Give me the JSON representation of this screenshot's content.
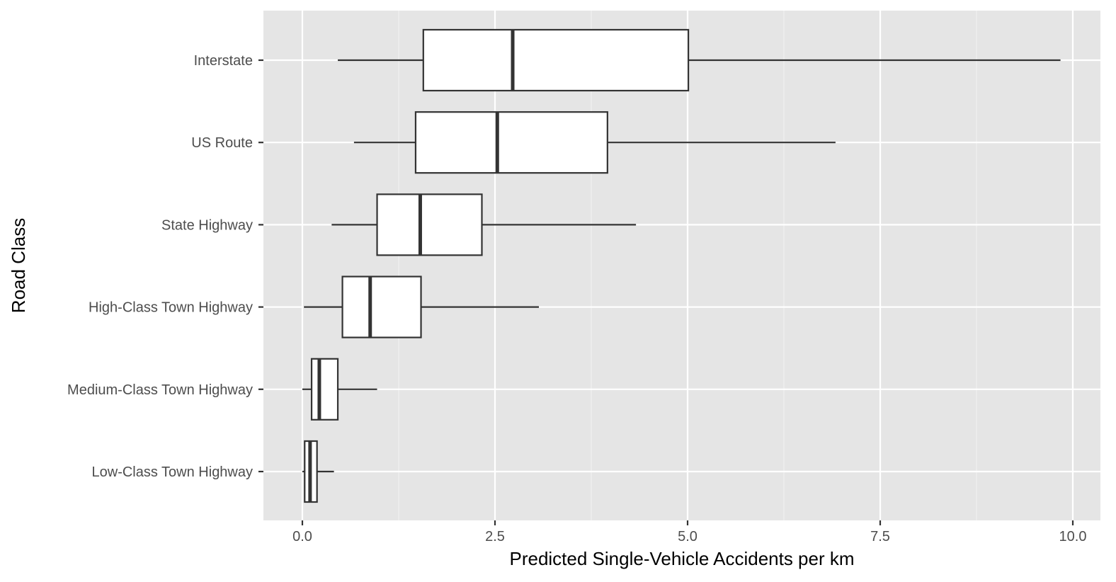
{
  "chart_data": {
    "type": "boxplot",
    "orientation": "horizontal",
    "title": "",
    "xlabel": "Predicted Single-Vehicle Accidents per km",
    "ylabel": "Road Class",
    "xlim": [
      -0.25,
      10.2
    ],
    "x_ticks": [
      0.0,
      2.5,
      5.0,
      7.5,
      10.0
    ],
    "x_tick_labels": [
      "0.0",
      "2.5",
      "5.0",
      "7.5",
      "10.0"
    ],
    "categories": [
      "Interstate",
      "US Route",
      "State Highway",
      "High-Class Town Highway",
      "Medium-Class Town Highway",
      "Low-Class Town Highway"
    ],
    "boxes": [
      {
        "category": "Interstate",
        "whisker_low": 0.46,
        "q1": 1.57,
        "median": 2.73,
        "q3": 5.01,
        "whisker_high": 9.84
      },
      {
        "category": "US Route",
        "whisker_low": 0.67,
        "q1": 1.47,
        "median": 2.53,
        "q3": 3.96,
        "whisker_high": 6.92
      },
      {
        "category": "State Highway",
        "whisker_low": 0.38,
        "q1": 0.97,
        "median": 1.53,
        "q3": 2.33,
        "whisker_high": 4.33
      },
      {
        "category": "High-Class Town Highway",
        "whisker_low": 0.02,
        "q1": 0.52,
        "median": 0.88,
        "q3": 1.54,
        "whisker_high": 3.07
      },
      {
        "category": "Medium-Class Town Highway",
        "whisker_low": 0.0,
        "q1": 0.12,
        "median": 0.22,
        "q3": 0.46,
        "whisker_high": 0.97
      },
      {
        "category": "Low-Class Town Highway",
        "whisker_low": 0.0,
        "q1": 0.03,
        "median": 0.1,
        "q3": 0.19,
        "whisker_high": 0.41
      }
    ],
    "grid": true,
    "legend": "none",
    "colors": {
      "panel_background": "#e5e5e5",
      "grid_major": "#ffffff",
      "grid_minor": "#f2f2f2",
      "box_fill": "#ffffff",
      "box_stroke": "#333333",
      "tick_text": "#4d4d4d",
      "tick_mark": "#333333",
      "axis_title": "#000000"
    }
  }
}
